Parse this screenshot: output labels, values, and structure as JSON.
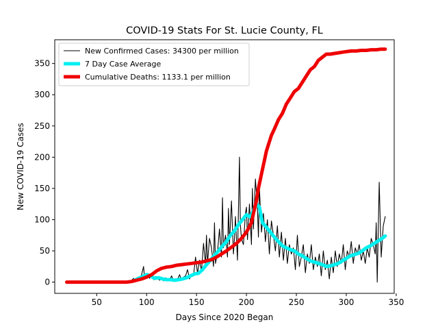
{
  "chart_data": {
    "type": "line",
    "title": "COVID-19 Stats For St. Lucie County, FL",
    "xlabel": "Days Since 2020 Began",
    "ylabel": "New COVID-19 Cases",
    "xlim": [
      8,
      348
    ],
    "ylim": [
      -18,
      388
    ],
    "xticks": [
      50,
      100,
      150,
      200,
      250,
      300,
      350
    ],
    "yticks": [
      0,
      50,
      100,
      150,
      200,
      250,
      300,
      350
    ],
    "grid": false,
    "legend_position": "top-left",
    "series": [
      {
        "name": "New Confirmed Cases: 34300 per million",
        "color": "#000000",
        "style": "thin-line",
        "x": [
          85,
          87,
          89,
          91,
          93,
          95,
          97,
          98,
          99,
          101,
          103,
          105,
          107,
          109,
          111,
          113,
          115,
          117,
          119,
          121,
          123,
          125,
          127,
          129,
          131,
          133,
          135,
          137,
          139,
          141,
          143,
          145,
          147,
          149,
          151,
          153,
          155,
          157,
          159,
          160,
          161,
          163,
          165,
          167,
          168,
          169,
          171,
          173,
          175,
          176,
          177,
          179,
          181,
          182,
          183,
          185,
          187,
          188,
          189,
          191,
          193,
          194,
          195,
          197,
          199,
          200,
          201,
          203,
          205,
          206,
          207,
          209,
          211,
          212,
          213,
          215,
          217,
          219,
          221,
          223,
          225,
          227,
          229,
          231,
          233,
          235,
          237,
          239,
          241,
          243,
          245,
          247,
          249,
          251,
          253,
          255,
          257,
          259,
          261,
          263,
          265,
          267,
          269,
          271,
          273,
          275,
          277,
          279,
          281,
          283,
          285,
          287,
          289,
          291,
          293,
          295,
          297,
          299,
          301,
          303,
          305,
          307,
          309,
          311,
          313,
          315,
          317,
          319,
          321,
          323,
          325,
          327,
          329,
          330,
          331,
          333,
          335,
          337,
          339
        ],
        "y": [
          3,
          6,
          2,
          8,
          4,
          12,
          25,
          5,
          10,
          14,
          6,
          12,
          4,
          9,
          6,
          3,
          8,
          2,
          7,
          4,
          3,
          10,
          2,
          5,
          4,
          12,
          3,
          8,
          10,
          20,
          5,
          12,
          10,
          40,
          14,
          35,
          18,
          62,
          28,
          75,
          30,
          70,
          55,
          25,
          95,
          30,
          48,
          85,
          40,
          135,
          55,
          75,
          40,
          118,
          60,
          130,
          45,
          70,
          105,
          35,
          200,
          90,
          70,
          60,
          110,
          120,
          68,
          125,
          60,
          150,
          85,
          165,
          120,
          72,
          150,
          80,
          110,
          65,
          100,
          45,
          98,
          75,
          50,
          90,
          40,
          80,
          35,
          70,
          30,
          60,
          45,
          55,
          20,
          75,
          25,
          40,
          60,
          15,
          45,
          30,
          60,
          20,
          40,
          25,
          45,
          10,
          50,
          20,
          35,
          5,
          40,
          15,
          50,
          25,
          45,
          30,
          60,
          20,
          50,
          40,
          65,
          30,
          55,
          45,
          60,
          35,
          50,
          30,
          55,
          40,
          70,
          60,
          45,
          95,
          0,
          160,
          40,
          90,
          105
        ]
      },
      {
        "name": "7 Day Case Average",
        "color": "#00f0f0",
        "style": "thick-line",
        "x": [
          88,
          92,
          96,
          100,
          104,
          108,
          112,
          116,
          120,
          124,
          128,
          132,
          136,
          140,
          144,
          148,
          152,
          156,
          160,
          164,
          168,
          172,
          176,
          180,
          184,
          188,
          192,
          196,
          200,
          204,
          207,
          210,
          213,
          216,
          220,
          224,
          228,
          232,
          236,
          240,
          244,
          248,
          252,
          256,
          260,
          264,
          268,
          272,
          276,
          280,
          284,
          288,
          292,
          296,
          300,
          304,
          308,
          312,
          316,
          320,
          324,
          328,
          332,
          336,
          339
        ],
        "y": [
          3,
          6,
          9,
          12,
          10,
          6,
          7,
          5,
          4,
          4,
          3,
          4,
          5,
          7,
          10,
          13,
          14,
          20,
          28,
          35,
          43,
          50,
          58,
          65,
          75,
          82,
          92,
          100,
          108,
          104,
          115,
          125,
          120,
          95,
          88,
          80,
          72,
          65,
          58,
          55,
          52,
          50,
          45,
          42,
          38,
          34,
          32,
          30,
          28,
          25,
          26,
          28,
          30,
          34,
          38,
          42,
          44,
          46,
          50,
          55,
          58,
          62,
          66,
          70,
          74
        ]
      },
      {
        "name": "Cumulative Deaths: 1133.1 per million",
        "color": "#ee0000",
        "style": "thick-line",
        "x": [
          20,
          50,
          80,
          85,
          95,
          100,
          105,
          110,
          115,
          120,
          125,
          130,
          135,
          140,
          145,
          150,
          155,
          160,
          165,
          170,
          175,
          180,
          185,
          190,
          195,
          200,
          205,
          207,
          210,
          212,
          214,
          216,
          218,
          220,
          222,
          225,
          228,
          232,
          236,
          240,
          244,
          248,
          252,
          256,
          260,
          264,
          268,
          272,
          276,
          280,
          284,
          288,
          292,
          296,
          300,
          305,
          310,
          315,
          320,
          325,
          330,
          335,
          339
        ],
        "y": [
          0,
          0,
          0,
          1,
          5,
          8,
          12,
          18,
          22,
          24,
          25,
          27,
          28,
          29,
          30,
          31,
          32,
          34,
          36,
          40,
          45,
          50,
          56,
          62,
          70,
          80,
          95,
          110,
          130,
          150,
          165,
          180,
          195,
          210,
          220,
          235,
          245,
          260,
          270,
          285,
          295,
          305,
          310,
          320,
          330,
          340,
          345,
          355,
          360,
          365,
          365,
          366,
          367,
          368,
          369,
          370,
          370,
          371,
          371,
          372,
          372,
          373,
          373
        ]
      }
    ]
  }
}
